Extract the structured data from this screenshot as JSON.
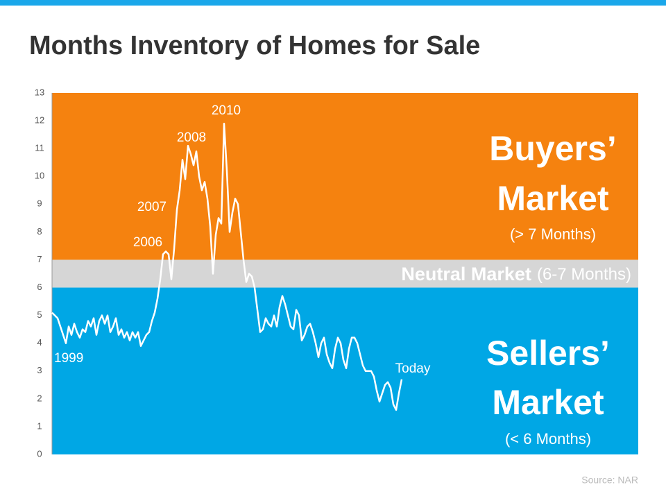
{
  "chart_data": {
    "type": "line",
    "title": "Months Inventory of Homes for Sale",
    "values": [
      5.1,
      5.0,
      4.9,
      4.6,
      4.3,
      4.0,
      4.6,
      4.3,
      4.7,
      4.4,
      4.2,
      4.5,
      4.4,
      4.8,
      4.6,
      4.9,
      4.3,
      4.8,
      5.0,
      4.7,
      5.0,
      4.4,
      4.6,
      4.9,
      4.3,
      4.5,
      4.2,
      4.4,
      4.1,
      4.4,
      4.2,
      4.4,
      3.9,
      4.1,
      4.3,
      4.4,
      4.8,
      5.1,
      5.6,
      6.3,
      7.2,
      7.3,
      7.2,
      6.3,
      7.4,
      8.8,
      9.5,
      10.6,
      9.9,
      11.1,
      10.8,
      10.4,
      10.9,
      10.0,
      9.5,
      9.8,
      9.2,
      8.2,
      6.5,
      7.9,
      8.5,
      8.3,
      11.9,
      10.2,
      8.0,
      8.7,
      9.2,
      9.0,
      8.0,
      7.0,
      6.2,
      6.5,
      6.4,
      6.0,
      5.2,
      4.4,
      4.5,
      4.9,
      4.7,
      4.6,
      5.0,
      4.6,
      5.3,
      5.7,
      5.4,
      5.0,
      4.6,
      4.5,
      5.2,
      5.0,
      4.1,
      4.3,
      4.6,
      4.7,
      4.4,
      4.0,
      3.5,
      4.0,
      4.2,
      3.6,
      3.3,
      3.1,
      3.8,
      4.2,
      4.0,
      3.4,
      3.1,
      3.8,
      4.2,
      4.2,
      4.0,
      3.6,
      3.2,
      3.0,
      3.0,
      3.0,
      2.8,
      2.3,
      1.9,
      2.2,
      2.5,
      2.6,
      2.4,
      1.8,
      1.6,
      2.2,
      2.7
    ],
    "color": "#ffffff",
    "ylim": [
      0,
      13
    ],
    "yticks": [
      0,
      1,
      2,
      3,
      4,
      5,
      6,
      7,
      8,
      9,
      10,
      11,
      12,
      13
    ],
    "bands": [
      {
        "from": 7,
        "to": 13,
        "color": "#f5820f",
        "label": "Buyers’",
        "label2": "Market",
        "note": "(> 7 Months)"
      },
      {
        "from": 6,
        "to": 7,
        "color": "#d6d6d6",
        "label": "Neutral Market",
        "note": "(6-7 Months)"
      },
      {
        "from": 0,
        "to": 6,
        "color": "#00a7e5",
        "label": "Sellers’",
        "label2": "Market",
        "note": "(< 6 Months)"
      }
    ],
    "annotations": [
      "1999",
      "2006",
      "2007",
      "2008",
      "2010",
      "Today"
    ],
    "source": "Source: NAR"
  }
}
